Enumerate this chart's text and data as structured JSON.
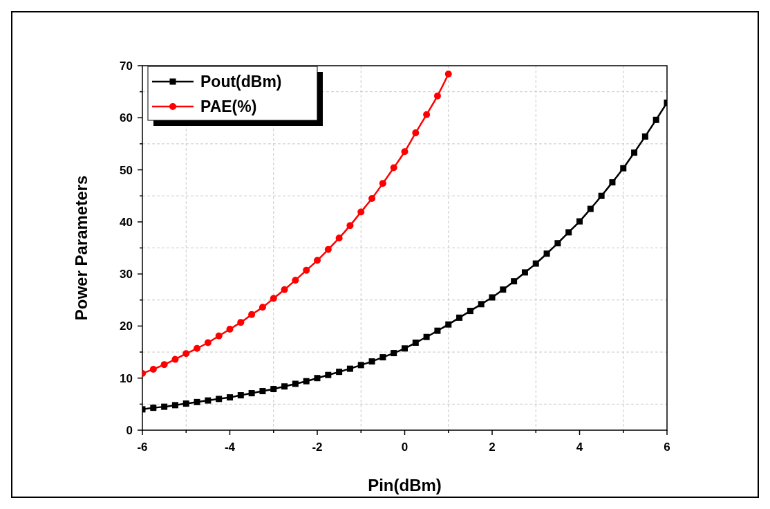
{
  "chart_data": {
    "type": "line",
    "xlabel": "Pin(dBm)",
    "ylabel": "Power Parameters",
    "xlim": [
      -6,
      6
    ],
    "ylim": [
      0,
      70
    ],
    "xticks": [
      -6,
      {
        "value": -5,
        "label": null
      },
      -4,
      {
        "value": -3,
        "label": null
      },
      -2,
      {
        "value": -1,
        "label": null
      },
      0,
      {
        "value": 1,
        "label": null
      },
      2,
      {
        "value": 3,
        "label": null
      },
      4,
      {
        "value": 5,
        "label": null
      },
      6
    ],
    "yticks": [
      0,
      {
        "value": 5,
        "label": null
      },
      10,
      {
        "value": 15,
        "label": null
      },
      20,
      {
        "value": 25,
        "label": null
      },
      30,
      {
        "value": 35,
        "label": null
      },
      40,
      {
        "value": 45,
        "label": null
      },
      50,
      {
        "value": 55,
        "label": null
      },
      60,
      {
        "value": 65,
        "label": null
      },
      70
    ],
    "grid": true,
    "legend": "top left",
    "line_style": "solid",
    "series": [
      {
        "name": "Pout(dBm)",
        "color": "#000000",
        "marker": "square",
        "x": [
          -6,
          -5.75,
          -5.5,
          -5.25,
          -5,
          -4.75,
          -4.5,
          -4.25,
          -4,
          -3.75,
          -3.5,
          -3.25,
          -3,
          -2.75,
          -2.5,
          -2.25,
          -2,
          -1.75,
          -1.5,
          -1.25,
          -1,
          -0.75,
          -0.5,
          -0.25,
          0,
          0.25,
          0.5,
          0.75,
          1,
          1.25,
          1.5,
          1.75,
          2,
          2.25,
          2.5,
          2.75,
          3,
          3.25,
          3.5,
          3.75,
          4,
          4.25,
          4.5,
          4.75,
          5,
          5.25,
          5.5,
          5.75,
          6
        ],
        "values": [
          4.0,
          4.3,
          4.5,
          4.8,
          5.1,
          5.4,
          5.7,
          6.0,
          6.3,
          6.7,
          7.1,
          7.5,
          7.9,
          8.4,
          8.9,
          9.4,
          10.0,
          10.6,
          11.2,
          11.8,
          12.5,
          13.2,
          14.0,
          14.8,
          15.7,
          16.8,
          17.9,
          19.1,
          20.3,
          21.6,
          22.9,
          24.2,
          25.5,
          27.0,
          28.6,
          30.3,
          32.0,
          33.9,
          35.9,
          38.0,
          40.1,
          42.5,
          45.0,
          47.6,
          50.3,
          53.3,
          56.4,
          59.6,
          62.9
        ]
      },
      {
        "name": "PAE(%)",
        "color": "#ff0000",
        "marker": "circle",
        "x": [
          -6,
          -5.75,
          -5.5,
          -5.25,
          -5,
          -4.75,
          -4.5,
          -4.25,
          -4,
          -3.75,
          -3.5,
          -3.25,
          -3,
          -2.75,
          -2.5,
          -2.25,
          -2,
          -1.75,
          -1.5,
          -1.25,
          -1,
          -0.75,
          -0.5,
          -0.25,
          0,
          0.25,
          0.5,
          0.75,
          1
        ],
        "values": [
          10.9,
          11.7,
          12.6,
          13.6,
          14.7,
          15.7,
          16.8,
          18.1,
          19.4,
          20.7,
          22.2,
          23.6,
          25.3,
          27.0,
          28.8,
          30.7,
          32.6,
          34.7,
          36.9,
          39.3,
          41.9,
          44.5,
          47.4,
          50.4,
          53.5,
          57.1,
          60.6,
          64.2,
          68.4
        ]
      }
    ]
  }
}
